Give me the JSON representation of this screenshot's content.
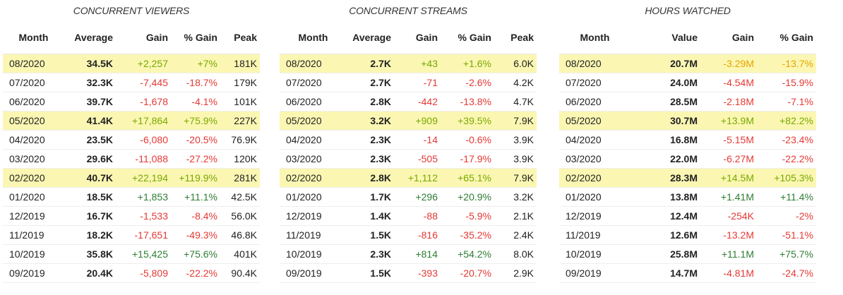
{
  "viewers": {
    "title": "CONCURRENT VIEWERS",
    "headers": [
      "Month",
      "Average",
      "Gain",
      "% Gain",
      "Peak"
    ],
    "rows": [
      {
        "month": "08/2020",
        "avg": "34.5K",
        "gain": "+2,257",
        "pct": "+7%",
        "peak": "181K",
        "hl": true
      },
      {
        "month": "07/2020",
        "avg": "32.3K",
        "gain": "-7,445",
        "pct": "-18.7%",
        "peak": "179K",
        "hl": false
      },
      {
        "month": "06/2020",
        "avg": "39.7K",
        "gain": "-1,678",
        "pct": "-4.1%",
        "peak": "101K",
        "hl": false
      },
      {
        "month": "05/2020",
        "avg": "41.4K",
        "gain": "+17,864",
        "pct": "+75.9%",
        "peak": "227K",
        "hl": true
      },
      {
        "month": "04/2020",
        "avg": "23.5K",
        "gain": "-6,080",
        "pct": "-20.5%",
        "peak": "76.9K",
        "hl": false
      },
      {
        "month": "03/2020",
        "avg": "29.6K",
        "gain": "-11,088",
        "pct": "-27.2%",
        "peak": "120K",
        "hl": false
      },
      {
        "month": "02/2020",
        "avg": "40.7K",
        "gain": "+22,194",
        "pct": "+119.9%",
        "peak": "281K",
        "hl": true
      },
      {
        "month": "01/2020",
        "avg": "18.5K",
        "gain": "+1,853",
        "pct": "+11.1%",
        "peak": "42.5K",
        "hl": false
      },
      {
        "month": "12/2019",
        "avg": "16.7K",
        "gain": "-1,533",
        "pct": "-8.4%",
        "peak": "56.0K",
        "hl": false
      },
      {
        "month": "11/2019",
        "avg": "18.2K",
        "gain": "-17,651",
        "pct": "-49.3%",
        "peak": "46.8K",
        "hl": false
      },
      {
        "month": "10/2019",
        "avg": "35.8K",
        "gain": "+15,425",
        "pct": "+75.6%",
        "peak": "401K",
        "hl": false
      },
      {
        "month": "09/2019",
        "avg": "20.4K",
        "gain": "-5,809",
        "pct": "-22.2%",
        "peak": "90.4K",
        "hl": false
      }
    ]
  },
  "streams": {
    "title": "CONCURRENT STREAMS",
    "headers": [
      "Month",
      "Average",
      "Gain",
      "% Gain",
      "Peak"
    ],
    "rows": [
      {
        "month": "08/2020",
        "avg": "2.7K",
        "gain": "+43",
        "pct": "+1.6%",
        "peak": "6.0K",
        "hl": true
      },
      {
        "month": "07/2020",
        "avg": "2.7K",
        "gain": "-71",
        "pct": "-2.6%",
        "peak": "4.2K",
        "hl": false
      },
      {
        "month": "06/2020",
        "avg": "2.8K",
        "gain": "-442",
        "pct": "-13.8%",
        "peak": "4.7K",
        "hl": false
      },
      {
        "month": "05/2020",
        "avg": "3.2K",
        "gain": "+909",
        "pct": "+39.5%",
        "peak": "7.9K",
        "hl": true
      },
      {
        "month": "04/2020",
        "avg": "2.3K",
        "gain": "-14",
        "pct": "-0.6%",
        "peak": "3.9K",
        "hl": false
      },
      {
        "month": "03/2020",
        "avg": "2.3K",
        "gain": "-505",
        "pct": "-17.9%",
        "peak": "3.9K",
        "hl": false
      },
      {
        "month": "02/2020",
        "avg": "2.8K",
        "gain": "+1,112",
        "pct": "+65.1%",
        "peak": "7.9K",
        "hl": true
      },
      {
        "month": "01/2020",
        "avg": "1.7K",
        "gain": "+296",
        "pct": "+20.9%",
        "peak": "3.2K",
        "hl": false
      },
      {
        "month": "12/2019",
        "avg": "1.4K",
        "gain": "-88",
        "pct": "-5.9%",
        "peak": "2.1K",
        "hl": false
      },
      {
        "month": "11/2019",
        "avg": "1.5K",
        "gain": "-816",
        "pct": "-35.2%",
        "peak": "2.4K",
        "hl": false
      },
      {
        "month": "10/2019",
        "avg": "2.3K",
        "gain": "+814",
        "pct": "+54.2%",
        "peak": "8.0K",
        "hl": false
      },
      {
        "month": "09/2019",
        "avg": "1.5K",
        "gain": "-393",
        "pct": "-20.7%",
        "peak": "2.9K",
        "hl": false
      }
    ]
  },
  "hours": {
    "title": "HOURS WATCHED",
    "headers": [
      "Month",
      "Value",
      "Gain",
      "% Gain"
    ],
    "rows": [
      {
        "month": "08/2020",
        "avg": "20.7M",
        "gain": "-3.29M",
        "pct": "-13.7%",
        "hl": true
      },
      {
        "month": "07/2020",
        "avg": "24.0M",
        "gain": "-4.54M",
        "pct": "-15.9%",
        "hl": false
      },
      {
        "month": "06/2020",
        "avg": "28.5M",
        "gain": "-2.18M",
        "pct": "-7.1%",
        "hl": false
      },
      {
        "month": "05/2020",
        "avg": "30.7M",
        "gain": "+13.9M",
        "pct": "+82.2%",
        "hl": true
      },
      {
        "month": "04/2020",
        "avg": "16.8M",
        "gain": "-5.15M",
        "pct": "-23.4%",
        "hl": false
      },
      {
        "month": "03/2020",
        "avg": "22.0M",
        "gain": "-6.27M",
        "pct": "-22.2%",
        "hl": false
      },
      {
        "month": "02/2020",
        "avg": "28.3M",
        "gain": "+14.5M",
        "pct": "+105.3%",
        "hl": true
      },
      {
        "month": "01/2020",
        "avg": "13.8M",
        "gain": "+1.41M",
        "pct": "+11.4%",
        "hl": false
      },
      {
        "month": "12/2019",
        "avg": "12.4M",
        "gain": "-254K",
        "pct": "-2%",
        "hl": false
      },
      {
        "month": "11/2019",
        "avg": "12.6M",
        "gain": "-13.2M",
        "pct": "-51.1%",
        "hl": false
      },
      {
        "month": "10/2019",
        "avg": "25.8M",
        "gain": "+11.1M",
        "pct": "+75.7%",
        "hl": false
      },
      {
        "month": "09/2019",
        "avg": "14.7M",
        "gain": "-4.81M",
        "pct": "-24.7%",
        "hl": false
      }
    ]
  }
}
